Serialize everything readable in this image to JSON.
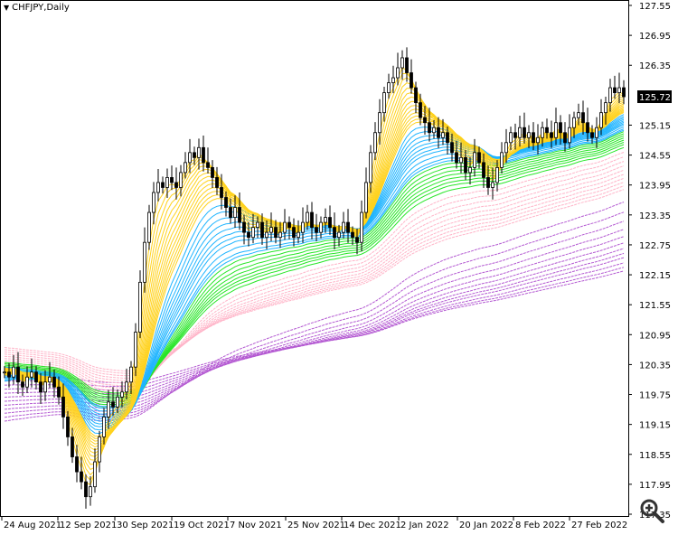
{
  "header": {
    "symbol_label": "CHFJPY,Daily",
    "menu_icon": "triangle-down-icon"
  },
  "current_price": "125.72",
  "zoom_icon": "magnifier-plus-icon",
  "colors": {
    "background": "#ffffff",
    "bars": "#000000",
    "ribbon_fast": "#ffd21e",
    "ribbon_medium": "#1eb4ff",
    "ribbon_green": "#28e628",
    "ribbon_pink": "#ffb4c8",
    "ribbon_purple": "#b45ad2",
    "price_tag": "#000000"
  },
  "chart_data": {
    "type": "candlestick",
    "title": "CHFJPY,Daily",
    "ylim": [
      117.35,
      127.55
    ],
    "y_ticks": [
      "127.55",
      "126.95",
      "126.35",
      "125.15",
      "124.55",
      "123.95",
      "123.35",
      "122.75",
      "122.15",
      "121.55",
      "120.95",
      "120.35",
      "119.75",
      "119.15",
      "118.55",
      "117.95",
      "117.35"
    ],
    "x_ticks": [
      "24 Aug 2021",
      "12 Sep 2021",
      "30 Sep 2021",
      "19 Oct 2021",
      "7 Nov 2021",
      "25 Nov 2021",
      "14 Dec 2021",
      "2 Jan 2022",
      "20 Jan 2022",
      "8 Feb 2022",
      "27 Feb 2022"
    ],
    "grid": false,
    "close": [
      120.2,
      120.1,
      120.3,
      120.0,
      119.9,
      120.1,
      120.2,
      120.0,
      119.8,
      120.0,
      120.1,
      119.9,
      119.7,
      119.3,
      118.9,
      118.5,
      118.2,
      118.0,
      117.7,
      117.9,
      118.4,
      118.9,
      119.3,
      119.6,
      119.5,
      119.7,
      119.8,
      120.0,
      120.3,
      121.0,
      122.0,
      122.8,
      123.4,
      123.8,
      124.0,
      123.9,
      124.1,
      124.0,
      123.9,
      124.2,
      124.4,
      124.6,
      124.5,
      124.7,
      124.4,
      124.3,
      124.1,
      123.9,
      123.7,
      123.5,
      123.3,
      123.5,
      123.2,
      123.0,
      122.9,
      123.1,
      123.2,
      122.9,
      123.0,
      123.1,
      122.9,
      123.0,
      123.2,
      123.1,
      122.9,
      123.0,
      123.2,
      123.4,
      123.1,
      123.0,
      123.2,
      123.3,
      123.1,
      122.9,
      123.0,
      123.2,
      123.0,
      122.9,
      122.8,
      123.4,
      124.0,
      124.6,
      125.0,
      125.4,
      125.8,
      126.0,
      126.1,
      126.3,
      126.5,
      126.2,
      125.9,
      125.6,
      125.3,
      125.2,
      125.0,
      125.1,
      124.9,
      125.0,
      124.8,
      124.6,
      124.4,
      124.5,
      124.2,
      124.3,
      124.6,
      124.4,
      124.1,
      123.9,
      124.0,
      124.3,
      124.6,
      124.8,
      125.0,
      124.9,
      125.1,
      124.9,
      125.0,
      124.8,
      124.9,
      125.1,
      125.0,
      124.9,
      125.2,
      125.0,
      124.8,
      125.1,
      125.3,
      125.4,
      125.2,
      125.0,
      124.9,
      125.1,
      125.4,
      125.6,
      125.9,
      125.8,
      125.9,
      125.72
    ]
  }
}
